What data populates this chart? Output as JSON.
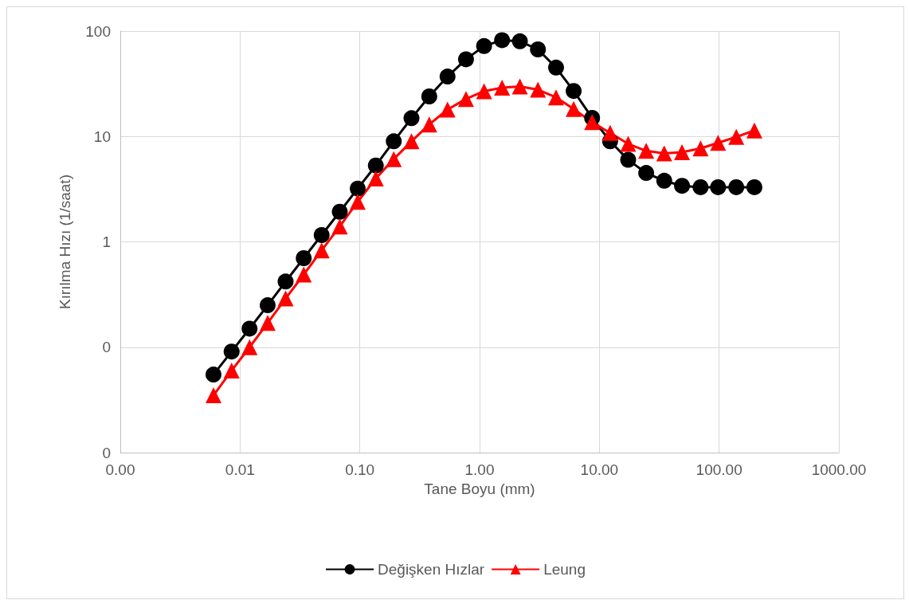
{
  "chart_data": {
    "type": "line",
    "xlabel": "Tane Boyu (mm)",
    "ylabel": "Kırılma Hızı (1/saat)",
    "x": [
      0.006,
      0.0085,
      0.012,
      0.017,
      0.024,
      0.034,
      0.048,
      0.068,
      0.096,
      0.136,
      0.192,
      0.27,
      0.38,
      0.54,
      0.77,
      1.09,
      1.54,
      2.17,
      3.07,
      4.35,
      6.1,
      8.7,
      12.3,
      17.4,
      24.6,
      34.8,
      49,
      70,
      98,
      139,
      197
    ],
    "series": [
      {
        "name": "Değişken Hızlar",
        "color": "#000000",
        "marker": "circle",
        "values": [
          0.055,
          0.091,
          0.15,
          0.25,
          0.42,
          0.7,
          1.16,
          1.93,
          3.2,
          5.3,
          9,
          14.9,
          24,
          37,
          54,
          72,
          82,
          80,
          67,
          45,
          27,
          15,
          9,
          6,
          4.5,
          3.8,
          3.4,
          3.3,
          3.3,
          3.3,
          3.3
        ]
      },
      {
        "name": "Leung",
        "color": "#ff0000",
        "marker": "triangle",
        "values": [
          0.035,
          0.06,
          0.1,
          0.17,
          0.29,
          0.49,
          0.83,
          1.4,
          2.4,
          4,
          6.1,
          9,
          13,
          18,
          22.7,
          26.9,
          29,
          29.8,
          27.8,
          23.5,
          18.2,
          13.7,
          10.8,
          8.5,
          7.3,
          6.9,
          7.1,
          7.7,
          8.7,
          9.9,
          11.4
        ]
      }
    ],
    "log": "xy",
    "xlim": [
      0.001,
      1000
    ],
    "ylim": [
      0.01,
      100
    ],
    "xticks": [
      {
        "value": 0.001,
        "label": "0.00"
      },
      {
        "value": 0.01,
        "label": "0.01"
      },
      {
        "value": 0.1,
        "label": "0.10"
      },
      {
        "value": 1,
        "label": "1.00"
      },
      {
        "value": 10,
        "label": "10.00"
      },
      {
        "value": 100,
        "label": "100.00"
      },
      {
        "value": 1000,
        "label": "1000.00"
      }
    ],
    "yticks": [
      {
        "value": 0.01,
        "label": "0"
      },
      {
        "value": 0.1,
        "label": "0"
      },
      1,
      10,
      100
    ],
    "grid": true,
    "legend": "bottom",
    "line_style": "solid"
  }
}
